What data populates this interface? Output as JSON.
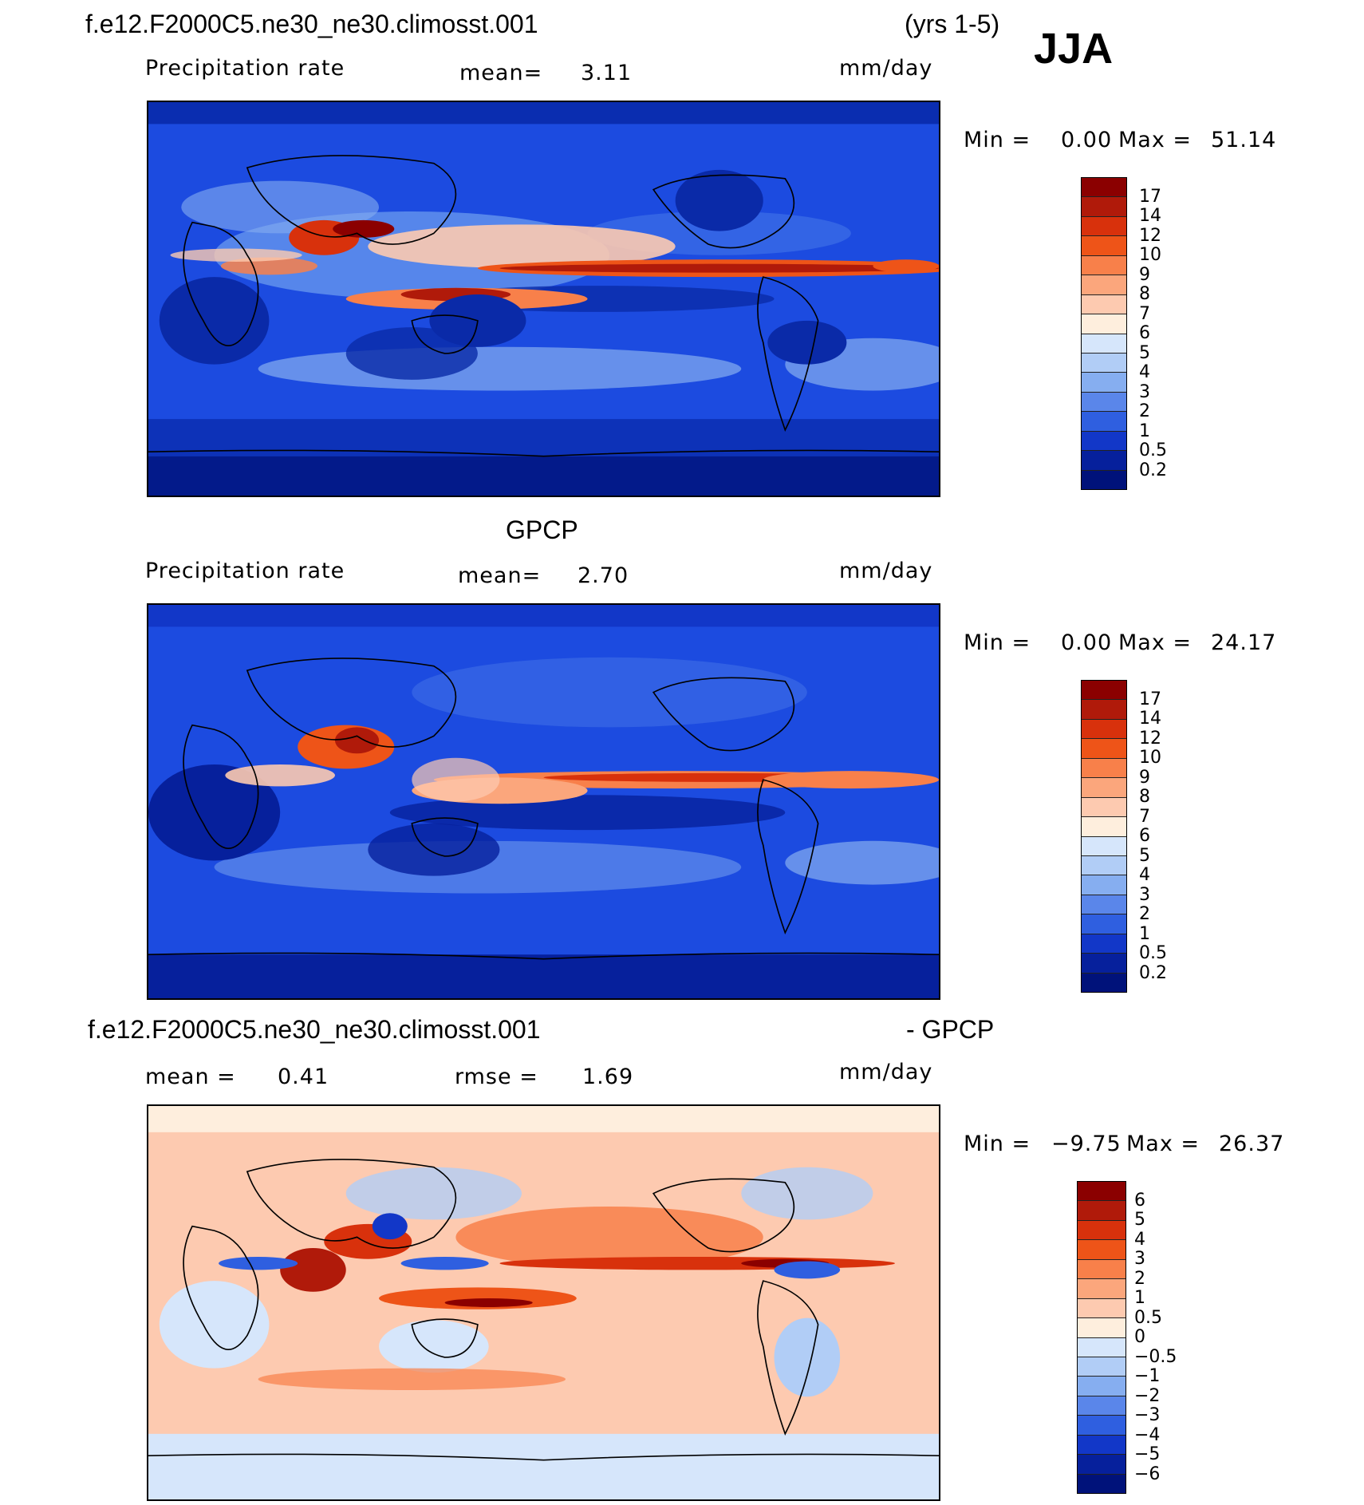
{
  "header": {
    "case_name": "f.e12.F2000C5.ne30_ne30.climosst.001",
    "years": "(yrs 1-5)",
    "season": "JJA"
  },
  "panels": [
    {
      "name": "model",
      "variable": "Precipitation rate",
      "mean_label": "mean=",
      "mean_value": "3.11",
      "units": "mm/day",
      "min_label": "Min =",
      "min_value": "0.00",
      "max_label": "Max =",
      "max_value": "51.14",
      "colorbar_labels": [
        "17",
        "14",
        "12",
        "10",
        "9",
        "8",
        "7",
        "6",
        "5",
        "4",
        "3",
        "2",
        "1",
        "0.5",
        "0.2"
      ],
      "colorbar_colors": [
        "#8b0000",
        "#b01a0a",
        "#d8310c",
        "#ee5418",
        "#f8804a",
        "#fba67c",
        "#fdcab0",
        "#feeedd",
        "#d6e6fb",
        "#b1cdf6",
        "#86aef0",
        "#5a86ea",
        "#2f5fe0",
        "#1237c8",
        "#06209c",
        "#00127a"
      ]
    },
    {
      "name": "obs",
      "title": "GPCP",
      "variable": "Precipitation rate",
      "mean_label": "mean=",
      "mean_value": "2.70",
      "units": "mm/day",
      "min_label": "Min =",
      "min_value": "0.00",
      "max_label": "Max =",
      "max_value": "24.17",
      "colorbar_labels": [
        "17",
        "14",
        "12",
        "10",
        "9",
        "8",
        "7",
        "6",
        "5",
        "4",
        "3",
        "2",
        "1",
        "0.5",
        "0.2"
      ],
      "colorbar_colors": [
        "#8b0000",
        "#b01a0a",
        "#d8310c",
        "#ee5418",
        "#f8804a",
        "#fba67c",
        "#fdcab0",
        "#feeedd",
        "#d6e6fb",
        "#b1cdf6",
        "#86aef0",
        "#5a86ea",
        "#2f5fe0",
        "#1237c8",
        "#06209c",
        "#00127a"
      ]
    },
    {
      "name": "diff",
      "title_left": "f.e12.F2000C5.ne30_ne30.climosst.001",
      "title_right": "- GPCP",
      "mean_label": "mean =",
      "mean_value": "0.41",
      "rmse_label": "rmse =",
      "rmse_value": "1.69",
      "units": "mm/day",
      "min_label": "Min =",
      "min_value": "−9.75",
      "max_label": "Max =",
      "max_value": "26.37",
      "colorbar_labels": [
        "6",
        "5",
        "4",
        "3",
        "2",
        "1",
        "0.5",
        "0",
        "−0.5",
        "−1",
        "−2",
        "−3",
        "−4",
        "−5",
        "−6"
      ],
      "colorbar_colors": [
        "#8b0000",
        "#b01a0a",
        "#d8310c",
        "#ee5418",
        "#f8804a",
        "#fba67c",
        "#fdcab0",
        "#feeedd",
        "#d6e6fb",
        "#b1cdf6",
        "#86aef0",
        "#5a86ea",
        "#2f5fe0",
        "#1237c8",
        "#06209c",
        "#00127a"
      ]
    }
  ]
}
